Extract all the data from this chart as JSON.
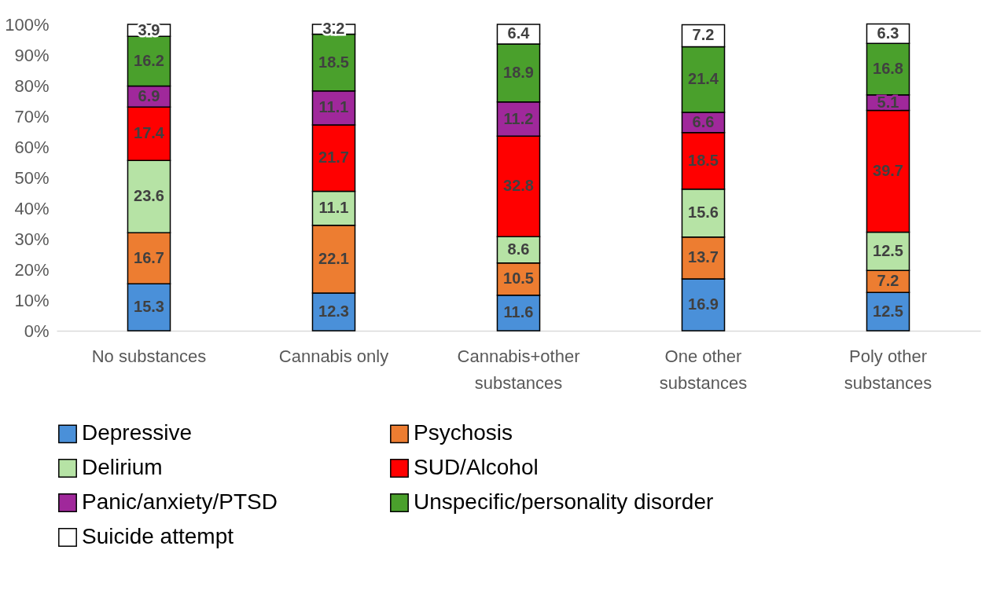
{
  "chart_data": {
    "type": "bar",
    "stacked": true,
    "categories": [
      "No substances",
      "Cannabis only",
      "Cannabis+other substances",
      "One other substances",
      "Poly other substances"
    ],
    "ylim": [
      0,
      100
    ],
    "yticks": [
      {
        "value": 0,
        "label": "0%"
      },
      {
        "value": 10,
        "label": "10%"
      },
      {
        "value": 20,
        "label": "20%"
      },
      {
        "value": 30,
        "label": "30%"
      },
      {
        "value": 40,
        "label": "40%"
      },
      {
        "value": 50,
        "label": "50%"
      },
      {
        "value": 60,
        "label": "60%"
      },
      {
        "value": 70,
        "label": "70%"
      },
      {
        "value": 80,
        "label": "80%"
      },
      {
        "value": 90,
        "label": "90%"
      },
      {
        "value": 100,
        "label": "100%"
      }
    ],
    "grid": false,
    "legend": "bottom",
    "data_labels": true,
    "series": [
      {
        "name": "Depressive",
        "color": "#4a90d9",
        "values": [
          15.3,
          12.3,
          11.6,
          16.9,
          12.5
        ]
      },
      {
        "name": "Psychosis",
        "color": "#ed7d31",
        "values": [
          16.7,
          22.1,
          10.5,
          13.7,
          7.2
        ]
      },
      {
        "name": "Delirium",
        "color": "#b6e3a5",
        "values": [
          23.6,
          11.1,
          8.6,
          15.6,
          12.5
        ]
      },
      {
        "name": "SUD/Alcohol",
        "color": "#ff0000",
        "values": [
          17.4,
          21.7,
          32.8,
          18.5,
          39.7
        ]
      },
      {
        "name": "Panic/anxiety/PTSD",
        "color": "#a0289b",
        "values": [
          6.9,
          11.1,
          11.2,
          6.6,
          5.1
        ]
      },
      {
        "name": "Unspecific/personality disorder",
        "color": "#4aa02c",
        "values": [
          16.2,
          18.5,
          18.9,
          21.4,
          16.8
        ]
      },
      {
        "name": "Suicide attempt",
        "color": "#ffffff",
        "values": [
          3.9,
          3.2,
          6.4,
          7.2,
          6.3
        ]
      }
    ]
  }
}
